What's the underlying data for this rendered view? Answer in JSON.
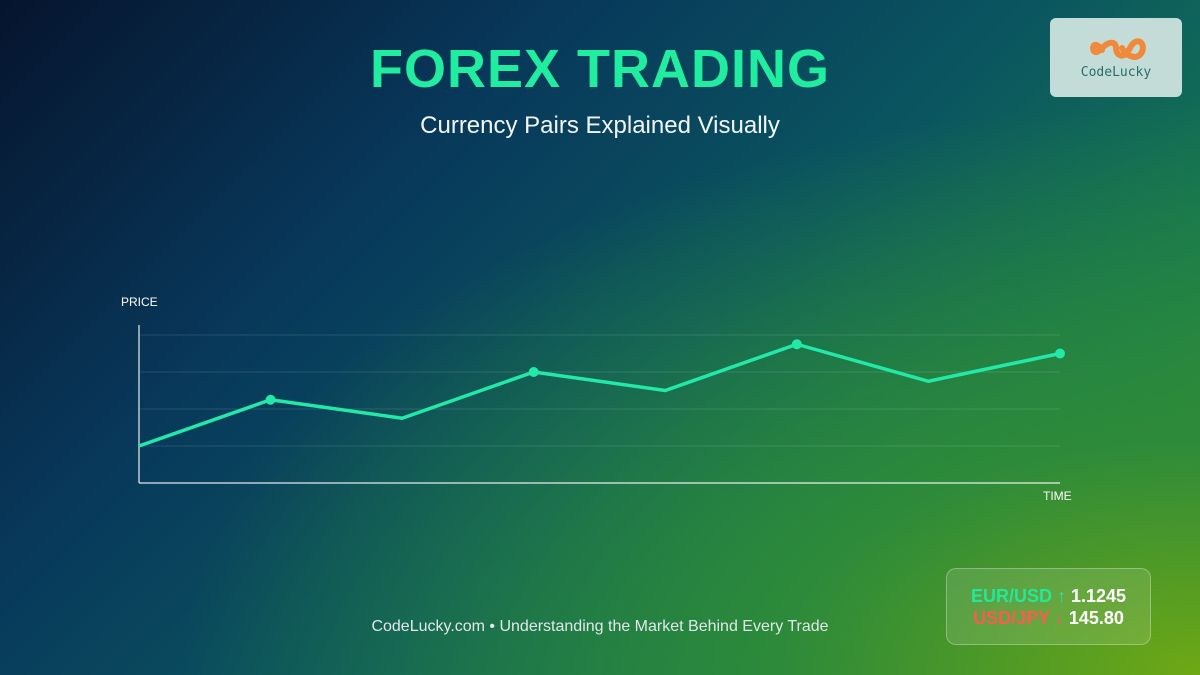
{
  "header": {
    "title": "FOREX TRADING",
    "subtitle": "Currency Pairs Explained Visually"
  },
  "logo": {
    "text": "CodeLucky"
  },
  "chart_data": {
    "type": "line",
    "y_label": "PRICE",
    "x_label": "TIME",
    "x": [
      0,
      1,
      2,
      3,
      4,
      5,
      6,
      7
    ],
    "xlim": [
      0,
      7
    ],
    "series": [
      {
        "color": "#22e8a8",
        "values": [
          1,
          2.25,
          1.75,
          3,
          2.5,
          3.75,
          2.75,
          3.5
        ]
      }
    ],
    "marker_every": 2,
    "ylim": [
      0,
      4
    ],
    "yticks": [
      1,
      2,
      3,
      4
    ],
    "grid": true
  },
  "footer": {
    "text": "CodeLucky.com • Understanding the Market Behind Every Trade"
  },
  "ticker": [
    {
      "pair": "EUR/USD",
      "arrow": "↑",
      "price": "1.1245",
      "color": "#22e89a"
    },
    {
      "pair": "USD/JPY",
      "arrow": "↓",
      "price": "145.80",
      "color": "#ff5a4f"
    }
  ]
}
